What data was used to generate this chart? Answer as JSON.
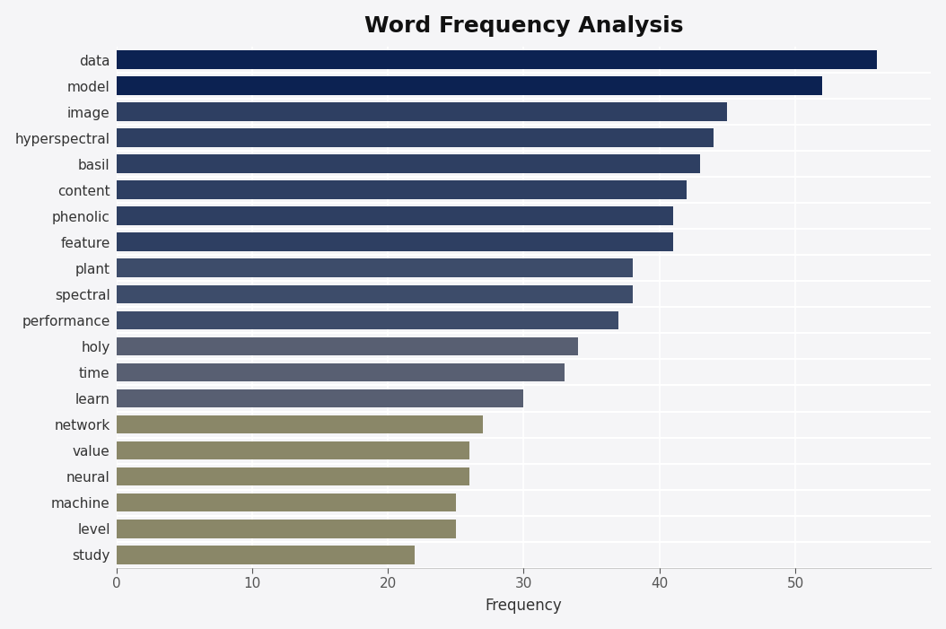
{
  "title": "Word Frequency Analysis",
  "xlabel": "Frequency",
  "categories": [
    "data",
    "model",
    "image",
    "hyperspectral",
    "basil",
    "content",
    "phenolic",
    "feature",
    "plant",
    "spectral",
    "performance",
    "holy",
    "time",
    "learn",
    "network",
    "value",
    "neural",
    "machine",
    "level",
    "study"
  ],
  "values": [
    56,
    52,
    45,
    44,
    43,
    42,
    41,
    41,
    38,
    38,
    37,
    34,
    33,
    30,
    27,
    26,
    26,
    25,
    25,
    22
  ],
  "bar_colors": [
    "#0c2252",
    "#0c2252",
    "#2e3f62",
    "#2e3f62",
    "#2e3f62",
    "#2e3f62",
    "#2e3f62",
    "#2e3f62",
    "#3d4c6a",
    "#3d4c6a",
    "#3d4c6a",
    "#585f72",
    "#585f72",
    "#585f72",
    "#8a8768",
    "#8a8768",
    "#8a8768",
    "#8a8768",
    "#8a8768",
    "#8a8768"
  ],
  "background_color": "#f5f5f7",
  "title_fontsize": 18,
  "tick_fontsize": 11,
  "label_fontsize": 12,
  "xlim": [
    0,
    60
  ],
  "xticks": [
    0,
    10,
    20,
    30,
    40,
    50
  ]
}
